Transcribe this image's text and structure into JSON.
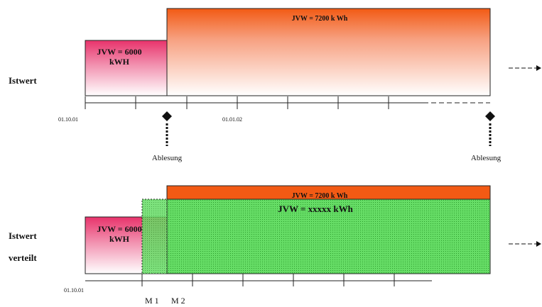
{
  "top_diagram": {
    "row_label": "Istwert",
    "box_small_line1": "JVW = 6000",
    "box_small_line2": "kWH",
    "box_large_label": "JVW = 7200 k Wh",
    "date_start": "01.10.01",
    "date_mid": "01.01.02",
    "reading_left": "Ablesung",
    "reading_right": "Ablesung"
  },
  "bottom_diagram": {
    "row_label_1": "Istwert",
    "row_label_2": "verteilt",
    "box_small_line1": "JVW = 6000",
    "box_small_line2": "kWH",
    "box_orange_label": "JVW = 7200 k Wh",
    "box_green_label": "JVW = xxxxx kWh",
    "date_start": "01.10.01",
    "marker_1": "M 1",
    "marker_2": "M 2"
  },
  "colors": {
    "orange": "#f25a14",
    "pink": "#e8336b",
    "green": "#5fd35f",
    "outline": "#222222"
  }
}
